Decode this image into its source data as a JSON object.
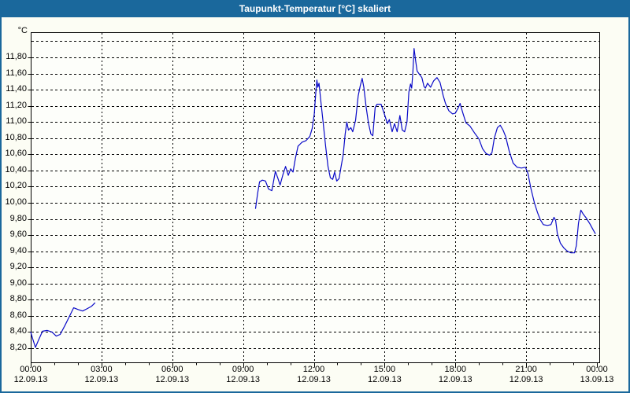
{
  "header": {
    "title": "Taupunkt-Temperatur [°C] skaliert"
  },
  "colors": {
    "accent": "#1a689c",
    "title_text": "#ffffff",
    "background": "#fcfdf4",
    "plot_background": "#fdfefa",
    "grid": "#000000",
    "axis": "#000000",
    "line": "#0a0ac8"
  },
  "chart_data": {
    "type": "line",
    "title": "Taupunkt-Temperatur [°C] skaliert",
    "y_unit": "°C",
    "xlabel": "",
    "ylabel": "Taupunkt-Temperatur [°C]",
    "grid": "dashed horizontal and vertical",
    "legend_position": "none",
    "ylim": [
      8.0,
      12.1
    ],
    "y_grid_min": 8.2,
    "y_grid_max": 12.0,
    "y_step": 0.2,
    "x_range_hours": [
      0,
      24
    ],
    "x_minor_tick_hours": 1,
    "y_ticks": [
      {
        "value": 8.2,
        "label": "8,20"
      },
      {
        "value": 8.4,
        "label": "8,40"
      },
      {
        "value": 8.6,
        "label": "8,60"
      },
      {
        "value": 8.8,
        "label": "8,80"
      },
      {
        "value": 9.0,
        "label": "9,00"
      },
      {
        "value": 9.2,
        "label": "9,20"
      },
      {
        "value": 9.4,
        "label": "9,40"
      },
      {
        "value": 9.6,
        "label": "9,60"
      },
      {
        "value": 9.8,
        "label": "9,80"
      },
      {
        "value": 10.0,
        "label": "10,00"
      },
      {
        "value": 10.2,
        "label": "10,20"
      },
      {
        "value": 10.4,
        "label": "10,40"
      },
      {
        "value": 10.6,
        "label": "10,60"
      },
      {
        "value": 10.8,
        "label": "10,80"
      },
      {
        "value": 11.0,
        "label": "11,00"
      },
      {
        "value": 11.2,
        "label": "11,20"
      },
      {
        "value": 11.4,
        "label": "11,40"
      },
      {
        "value": 11.6,
        "label": "11,60"
      },
      {
        "value": 11.8,
        "label": "11,80"
      }
    ],
    "x_ticks": [
      {
        "hour": 0,
        "time": "00:00",
        "date": "12.09.13"
      },
      {
        "hour": 3,
        "time": "03:00",
        "date": "12.09.13"
      },
      {
        "hour": 6,
        "time": "06:00",
        "date": "12.09.13"
      },
      {
        "hour": 9,
        "time": "09:00",
        "date": "12.09.13"
      },
      {
        "hour": 12,
        "time": "12:00",
        "date": "12.09.13"
      },
      {
        "hour": 15,
        "time": "15:00",
        "date": "12.09.13"
      },
      {
        "hour": 18,
        "time": "18:00",
        "date": "12.09.13"
      },
      {
        "hour": 21,
        "time": "21:00",
        "date": "12.09.13"
      },
      {
        "hour": 24,
        "time": "00:00",
        "date": "13.09.13"
      }
    ],
    "series": [
      {
        "name": "Taupunkt-Temperatur",
        "segments": [
          [
            [
              0.0,
              8.4
            ],
            [
              0.08,
              8.32
            ],
            [
              0.2,
              8.21
            ],
            [
              0.33,
              8.3
            ],
            [
              0.5,
              8.41
            ],
            [
              0.7,
              8.42
            ],
            [
              0.9,
              8.4
            ],
            [
              1.08,
              8.35
            ],
            [
              1.25,
              8.37
            ],
            [
              1.45,
              8.48
            ],
            [
              1.62,
              8.58
            ],
            [
              1.82,
              8.7
            ],
            [
              2.0,
              8.68
            ],
            [
              2.2,
              8.66
            ],
            [
              2.4,
              8.69
            ],
            [
              2.58,
              8.72
            ],
            [
              2.72,
              8.76
            ]
          ],
          [
            [
              9.53,
              9.93
            ],
            [
              9.62,
              10.12
            ],
            [
              9.7,
              10.26
            ],
            [
              9.82,
              10.28
            ],
            [
              9.95,
              10.27
            ],
            [
              10.08,
              10.17
            ],
            [
              10.22,
              10.15
            ],
            [
              10.37,
              10.39
            ],
            [
              10.48,
              10.3
            ],
            [
              10.57,
              10.22
            ],
            [
              10.68,
              10.34
            ],
            [
              10.8,
              10.45
            ],
            [
              10.92,
              10.34
            ],
            [
              11.02,
              10.42
            ],
            [
              11.12,
              10.38
            ],
            [
              11.22,
              10.55
            ],
            [
              11.33,
              10.7
            ],
            [
              11.5,
              10.75
            ],
            [
              11.67,
              10.77
            ],
            [
              11.83,
              10.82
            ],
            [
              11.93,
              10.92
            ],
            [
              12.02,
              11.1
            ],
            [
              12.08,
              11.35
            ],
            [
              12.13,
              11.52
            ],
            [
              12.17,
              11.43
            ],
            [
              12.22,
              11.48
            ],
            [
              12.3,
              11.25
            ],
            [
              12.4,
              10.98
            ],
            [
              12.5,
              10.7
            ],
            [
              12.6,
              10.45
            ],
            [
              12.7,
              10.31
            ],
            [
              12.8,
              10.29
            ],
            [
              12.88,
              10.38
            ],
            [
              12.97,
              10.27
            ],
            [
              13.07,
              10.3
            ],
            [
              13.15,
              10.44
            ],
            [
              13.25,
              10.6
            ],
            [
              13.33,
              10.85
            ],
            [
              13.4,
              11.0
            ],
            [
              13.47,
              10.9
            ],
            [
              13.57,
              10.93
            ],
            [
              13.65,
              10.88
            ],
            [
              13.77,
              11.02
            ],
            [
              13.88,
              11.32
            ],
            [
              13.97,
              11.45
            ],
            [
              14.05,
              11.54
            ],
            [
              14.12,
              11.43
            ],
            [
              14.22,
              11.18
            ],
            [
              14.32,
              10.98
            ],
            [
              14.42,
              10.85
            ],
            [
              14.5,
              10.83
            ],
            [
              14.6,
              11.18
            ],
            [
              14.68,
              11.22
            ],
            [
              14.85,
              11.22
            ],
            [
              15.0,
              11.09
            ],
            [
              15.12,
              10.98
            ],
            [
              15.2,
              11.03
            ],
            [
              15.32,
              10.88
            ],
            [
              15.42,
              10.98
            ],
            [
              15.53,
              10.88
            ],
            [
              15.65,
              11.08
            ],
            [
              15.75,
              10.9
            ],
            [
              15.85,
              10.88
            ],
            [
              15.95,
              11.0
            ],
            [
              16.03,
              11.37
            ],
            [
              16.1,
              11.47
            ],
            [
              16.15,
              11.42
            ],
            [
              16.2,
              11.62
            ],
            [
              16.25,
              11.91
            ],
            [
              16.32,
              11.75
            ],
            [
              16.38,
              11.63
            ],
            [
              16.48,
              11.59
            ],
            [
              16.58,
              11.55
            ],
            [
              16.67,
              11.44
            ],
            [
              16.73,
              11.42
            ],
            [
              16.82,
              11.48
            ],
            [
              16.95,
              11.43
            ],
            [
              17.08,
              11.51
            ],
            [
              17.22,
              11.55
            ],
            [
              17.35,
              11.49
            ],
            [
              17.48,
              11.33
            ],
            [
              17.58,
              11.23
            ],
            [
              17.72,
              11.14
            ],
            [
              17.88,
              11.1
            ],
            [
              18.0,
              11.11
            ],
            [
              18.13,
              11.18
            ],
            [
              18.2,
              11.23
            ],
            [
              18.32,
              11.11
            ],
            [
              18.45,
              10.99
            ],
            [
              18.62,
              10.95
            ],
            [
              18.8,
              10.87
            ],
            [
              19.0,
              10.79
            ],
            [
              19.15,
              10.67
            ],
            [
              19.3,
              10.61
            ],
            [
              19.45,
              10.59
            ],
            [
              19.55,
              10.62
            ],
            [
              19.65,
              10.8
            ],
            [
              19.78,
              10.93
            ],
            [
              19.9,
              10.96
            ],
            [
              20.02,
              10.9
            ],
            [
              20.13,
              10.82
            ],
            [
              20.28,
              10.64
            ],
            [
              20.45,
              10.49
            ],
            [
              20.62,
              10.44
            ],
            [
              20.8,
              10.43
            ],
            [
              20.97,
              10.44
            ],
            [
              21.08,
              10.36
            ],
            [
              21.2,
              10.18
            ],
            [
              21.35,
              10.0
            ],
            [
              21.48,
              9.88
            ],
            [
              21.6,
              9.79
            ],
            [
              21.73,
              9.73
            ],
            [
              21.9,
              9.72
            ],
            [
              22.05,
              9.73
            ],
            [
              22.18,
              9.82
            ],
            [
              22.25,
              9.78
            ],
            [
              22.32,
              9.62
            ],
            [
              22.45,
              9.5
            ],
            [
              22.6,
              9.44
            ],
            [
              22.75,
              9.4
            ],
            [
              22.9,
              9.38
            ],
            [
              23.05,
              9.38
            ],
            [
              23.13,
              9.47
            ],
            [
              23.22,
              9.75
            ],
            [
              23.32,
              9.91
            ],
            [
              23.42,
              9.86
            ],
            [
              23.55,
              9.81
            ],
            [
              23.7,
              9.74
            ],
            [
              23.85,
              9.66
            ],
            [
              23.93,
              9.62
            ]
          ]
        ]
      }
    ]
  }
}
